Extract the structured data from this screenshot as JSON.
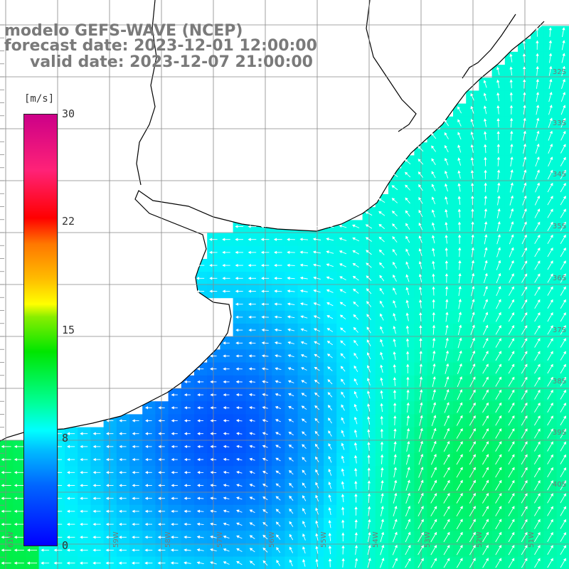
{
  "title": {
    "line1": "modelo GEFS-WAVE (NCEP)",
    "line2": "forecast date: 2023-12-01 12:00:00",
    "line3": "valid date: 2023-12-07 21:00:00"
  },
  "legend": {
    "unit": "[m/s]",
    "ticks": [
      "30",
      "22",
      "15",
      "8",
      "0"
    ],
    "colors": [
      "#0000ff",
      "#00bbff",
      "#00ffff",
      "#00e600",
      "#ffff00",
      "#ff7700",
      "#ff0000",
      "#cc0088"
    ]
  },
  "axes": {
    "lat_labels": [
      "32S",
      "33S",
      "34S",
      "35S",
      "36S",
      "37S",
      "38S",
      "39S",
      "40S"
    ],
    "lon_labels": [
      "61W",
      "59W",
      "58W",
      "57W",
      "56W",
      "55W",
      "54W",
      "53W",
      "52W",
      "51W"
    ]
  },
  "colors": {
    "land": "#ffffff",
    "grid": "#888888",
    "coast": "#000000",
    "arrow": "#ffffff",
    "title": "#7a7a7a"
  }
}
